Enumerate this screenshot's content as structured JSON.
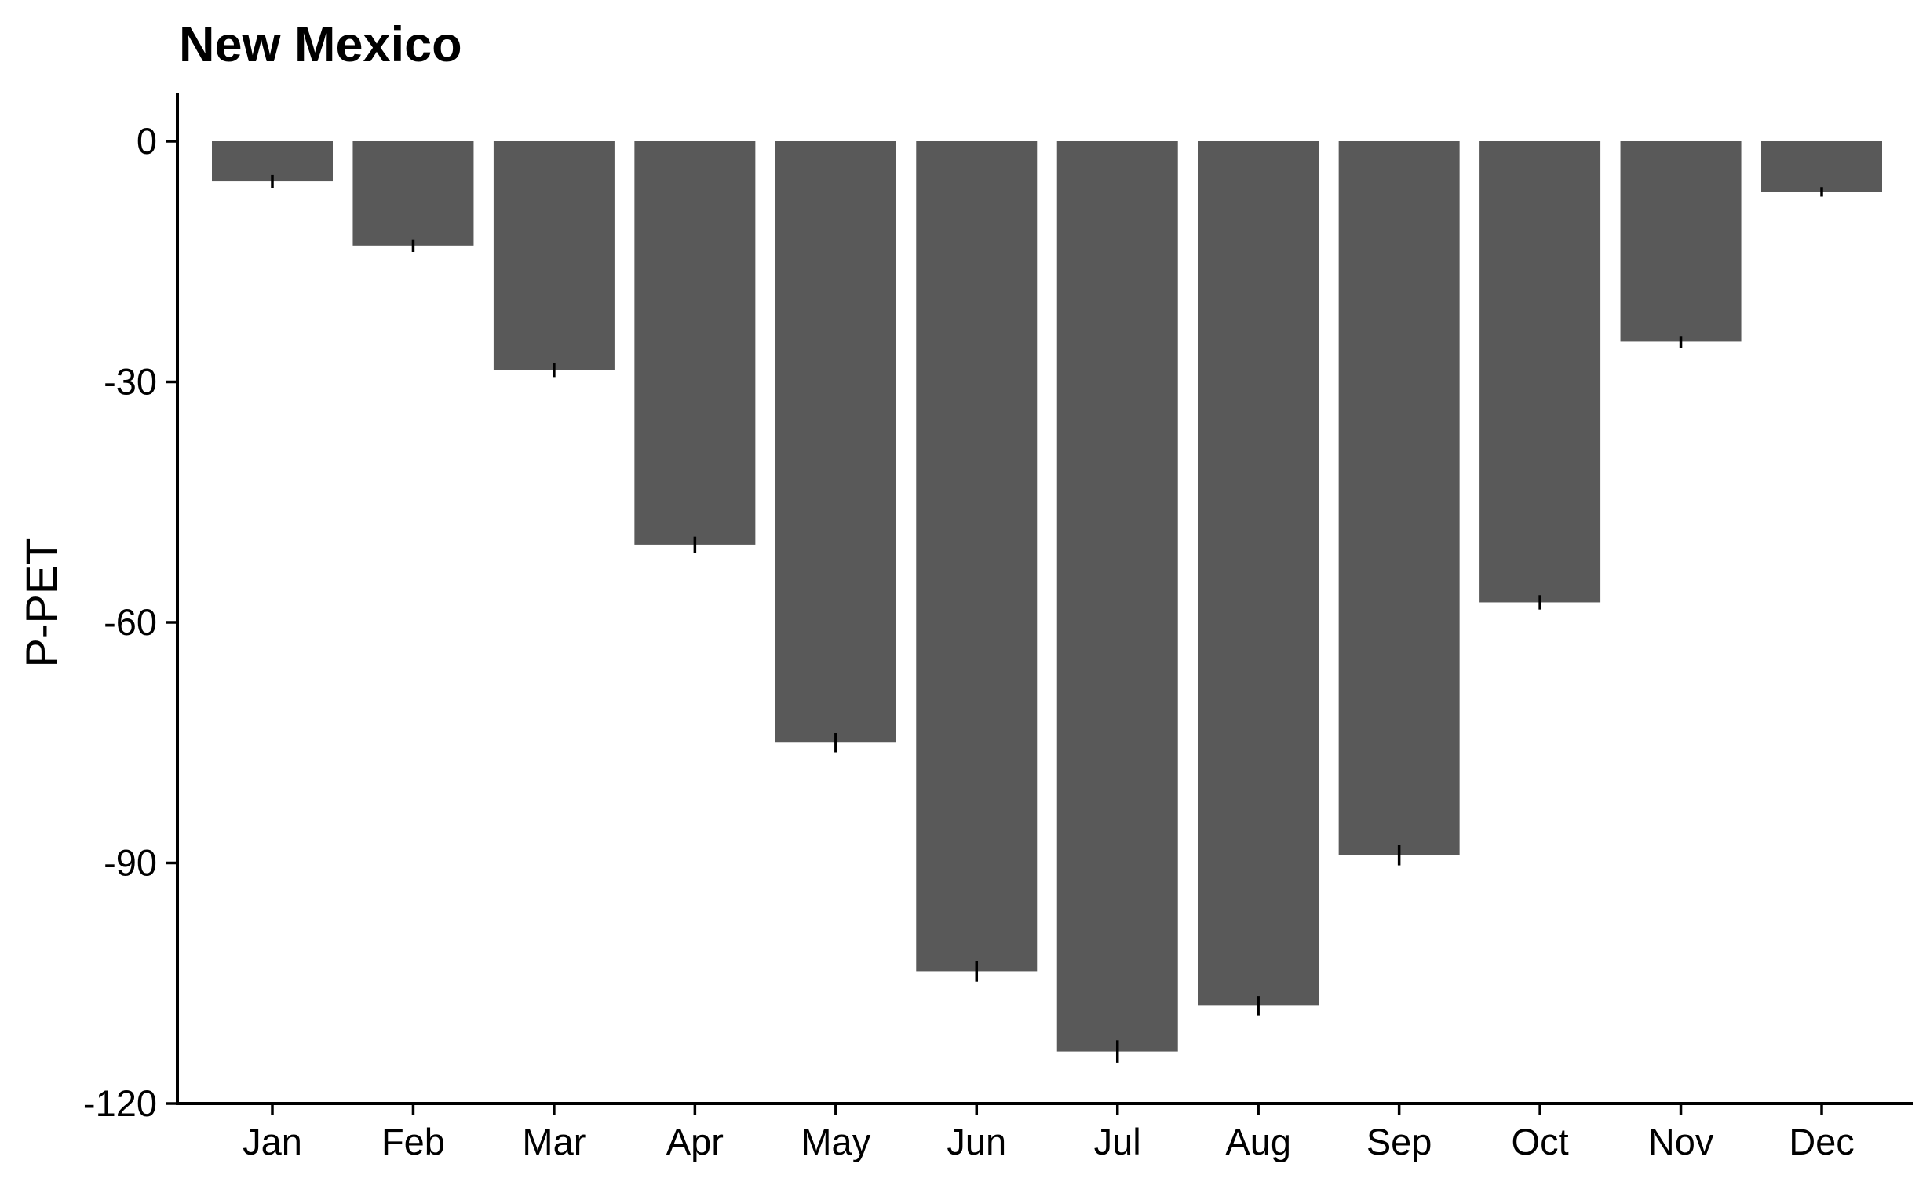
{
  "chart_data": {
    "type": "bar",
    "title": "New Mexico",
    "xlabel": "",
    "ylabel": "P-PET",
    "ylim": [
      -120,
      6
    ],
    "yticks": [
      0,
      -30,
      -60,
      -90,
      -120
    ],
    "ytick_labels": [
      "0",
      "-30",
      "-60",
      "-90",
      "-120"
    ],
    "categories": [
      "Jan",
      "Feb",
      "Mar",
      "Apr",
      "May",
      "Jun",
      "Jul",
      "Aug",
      "Sep",
      "Oct",
      "Nov",
      "Dec"
    ],
    "values": [
      -5,
      -13,
      -28.5,
      -50.3,
      -75,
      -103.5,
      -113.5,
      -107.8,
      -89,
      -57.5,
      -25,
      -6.3
    ],
    "error_low": [
      -5.8,
      -13.8,
      -29.4,
      -51.3,
      -76.2,
      -104.8,
      -114.9,
      -109,
      -90.3,
      -58.4,
      -25.8,
      -6.9
    ],
    "error_high": [
      -4.2,
      -12.3,
      -27.7,
      -49.3,
      -73.8,
      -102.2,
      -112.1,
      -106.6,
      -87.7,
      -56.6,
      -24.3,
      -5.7
    ],
    "bar_color": "#595959",
    "error_color": "#000000",
    "grid": false,
    "legend": "none"
  }
}
